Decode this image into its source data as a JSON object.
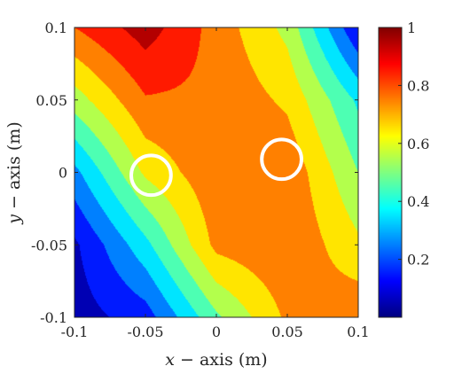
{
  "chart_data": {
    "type": "heatmap",
    "title": "",
    "xlabel": {
      "var": "x",
      "rest": " − axis (m)"
    },
    "ylabel": {
      "var": "y",
      "rest": " − axis (m)"
    },
    "xlim": [
      -0.1,
      0.1
    ],
    "ylim": [
      -0.1,
      0.1
    ],
    "x_ticks": [
      "-0.1",
      "-0.05",
      "0",
      "0.05",
      "0.1"
    ],
    "y_ticks": [
      "-0.1",
      "-0.05",
      "0",
      "0.05",
      "0.1"
    ],
    "x_tick_values": [
      -0.1,
      -0.05,
      0,
      0.05,
      0.1
    ],
    "y_tick_values": [
      -0.1,
      -0.05,
      0,
      0.05,
      0.1
    ],
    "colormap": "jet",
    "colorbar": {
      "limits": [
        0,
        1
      ],
      "ticks": [
        "0.2",
        "0.4",
        "0.6",
        "0.8",
        "1"
      ],
      "tick_values": [
        0.2,
        0.4,
        0.6,
        0.8,
        1.0
      ]
    },
    "contour_levels": [
      0,
      0.1,
      0.2,
      0.3,
      0.4,
      0.5,
      0.6,
      0.7,
      0.8,
      0.9,
      1.0
    ],
    "field": {
      "description_grid_x": [
        -0.1,
        -0.05,
        0,
        0.05,
        0.1
      ],
      "description_grid_y": [
        0.1,
        0.05,
        0,
        -0.05,
        -0.1
      ],
      "values": [
        [
          0.8,
          0.95,
          0.76,
          0.57,
          0.1
        ],
        [
          0.55,
          0.79,
          0.78,
          0.68,
          0.38
        ],
        [
          0.27,
          0.62,
          0.78,
          0.78,
          0.5
        ],
        [
          0.08,
          0.37,
          0.73,
          0.79,
          0.62
        ],
        [
          0.05,
          0.15,
          0.48,
          0.72,
          0.78
        ]
      ]
    },
    "markers": [
      {
        "shape": "circle",
        "x": -0.046,
        "y": -0.002,
        "radius": 0.014,
        "color": "#ffffff"
      },
      {
        "shape": "circle",
        "x": 0.046,
        "y": 0.009,
        "radius": 0.014,
        "color": "#ffffff"
      }
    ],
    "grid": false
  }
}
